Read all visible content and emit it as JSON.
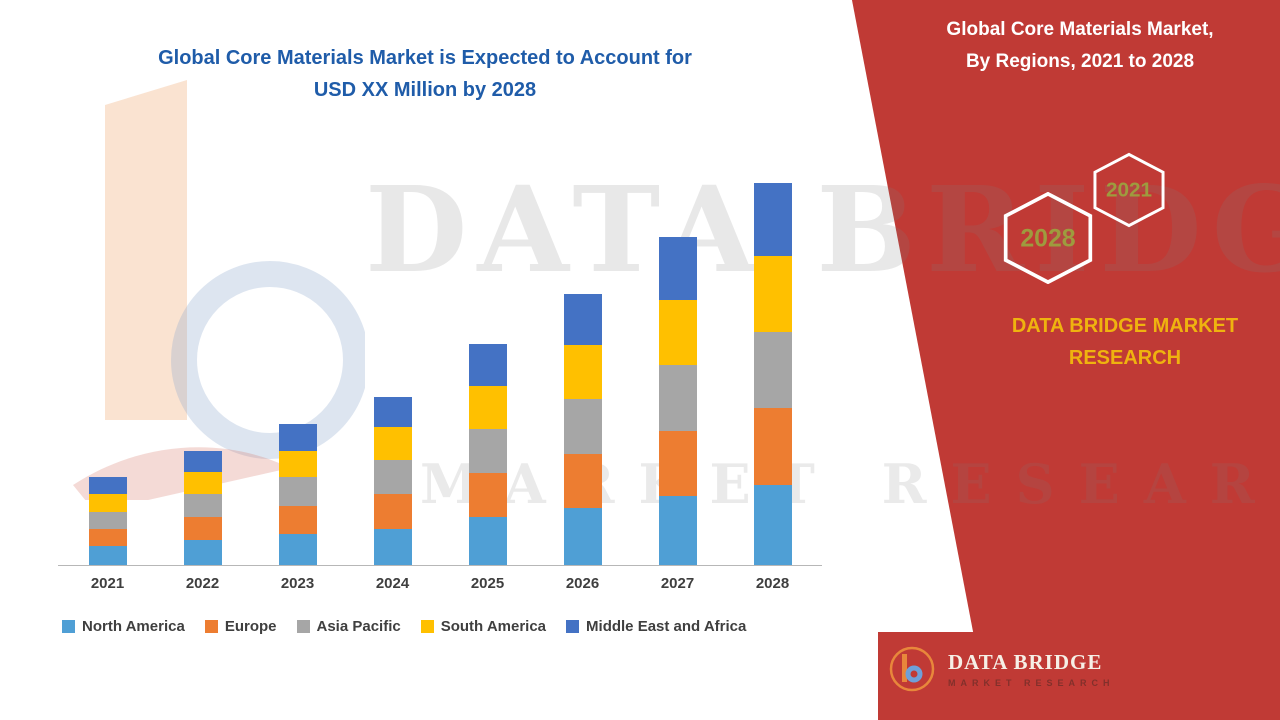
{
  "header": {
    "main_title_line1": "Global Core Materials Market is Expected to Account for",
    "main_title_line2": "USD XX Million by 2028",
    "panel_title_line1": "Global Core Materials Market,",
    "panel_title_line2": "By Regions, 2021 to 2028"
  },
  "panel": {
    "hexagon_left_year": "2028",
    "hexagon_right_year": "2021",
    "brand_line1": "DATA BRIDGE MARKET",
    "brand_line2": "RESEARCH"
  },
  "footer_logo": {
    "title": "DATA BRIDGE",
    "subtitle": "MARKET RESEARCH"
  },
  "watermark": {
    "line1": "DATA BRIDGE",
    "line2": "MARKET RESEARCH"
  },
  "colors": {
    "panel_red": "#C03A35",
    "title_blue": "#1F5CA9",
    "brand_gold": "#EFB30F",
    "hex_year_olive": "#9E9B3E",
    "axis_text": "#3F3F3F"
  },
  "chart_data": {
    "type": "bar",
    "stacked": true,
    "title": "Global Core Materials Market is Expected to Account for USD XX Million by 2028",
    "categories": [
      "2021",
      "2022",
      "2023",
      "2024",
      "2025",
      "2026",
      "2027",
      "2028"
    ],
    "series": [
      {
        "name": "North America",
        "color": "#4F9FD5",
        "values": [
          5,
          6.5,
          8,
          9.5,
          12.5,
          15,
          18,
          21
        ]
      },
      {
        "name": "Europe",
        "color": "#ED7D31",
        "values": [
          4.5,
          6,
          7.5,
          9,
          11.5,
          14,
          17,
          20
        ]
      },
      {
        "name": "Asia Pacific",
        "color": "#A6A6A6",
        "values": [
          4.5,
          6,
          7.5,
          9,
          11.5,
          14.5,
          17.5,
          20
        ]
      },
      {
        "name": "South America",
        "color": "#FFC000",
        "values": [
          4.5,
          6,
          7,
          8.5,
          11.5,
          14,
          17,
          20
        ]
      },
      {
        "name": "Middle East and Africa",
        "color": "#4472C4",
        "values": [
          4.5,
          5.5,
          7,
          8,
          11,
          13.5,
          16.5,
          19
        ]
      }
    ],
    "totals": [
      23,
      30,
      37,
      44,
      58,
      71,
      86,
      100
    ],
    "value_axis": {
      "visible": false,
      "units": "relative scale (no value axis shown; values estimated)",
      "range": [
        0,
        105
      ]
    },
    "grid": false,
    "legend_position": "bottom"
  }
}
